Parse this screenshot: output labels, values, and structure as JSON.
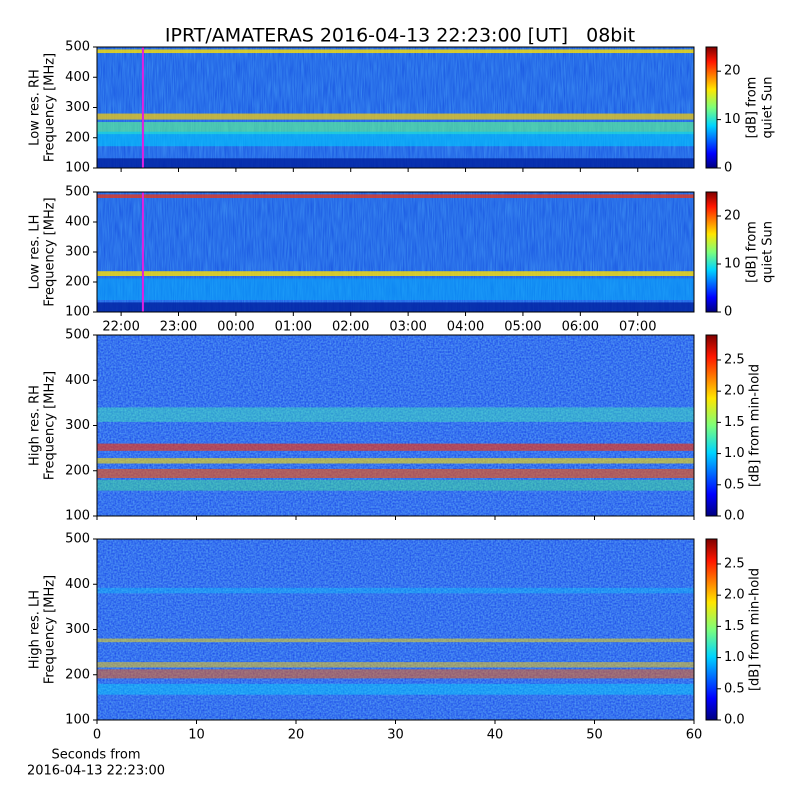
{
  "chart_data": [
    {
      "type": "heatmap",
      "title": "IPRT/AMATERAS 2016-04-13 22:23:00 [UT]   08bit",
      "ylabel": [
        "Low res. RH",
        "Frequency [MHz]"
      ],
      "ylim": [
        100,
        500
      ],
      "yticks": [
        100,
        200,
        300,
        400,
        500
      ],
      "xlim": [
        21.58,
        31.98
      ],
      "xticks_show_labels": false,
      "xticks": [
        {
          "value": 22,
          "label": "22:00"
        },
        {
          "value": 23,
          "label": "23:00"
        },
        {
          "value": 24,
          "label": "00:00"
        },
        {
          "value": 25,
          "label": "01:00"
        },
        {
          "value": 26,
          "label": "02:00"
        },
        {
          "value": 27,
          "label": "03:00"
        },
        {
          "value": 28,
          "label": "04:00"
        },
        {
          "value": 29,
          "label": "05:00"
        },
        {
          "value": 30,
          "label": "06:00"
        },
        {
          "value": 31,
          "label": "07:00"
        }
      ],
      "marker_x": 22.38,
      "marker_color": "#e020e0",
      "colorbar_label": [
        "[dB] from",
        "quiet Sun"
      ],
      "clim": [
        0,
        25
      ],
      "cticks": [
        0,
        10,
        20
      ]
    },
    {
      "type": "heatmap",
      "ylabel": [
        "Low res. LH",
        "Frequency [MHz]"
      ],
      "ylim": [
        100,
        500
      ],
      "yticks": [
        100,
        200,
        300,
        400,
        500
      ],
      "xlim": [
        21.58,
        31.98
      ],
      "xticks_show_labels": true,
      "xticks": [
        {
          "value": 22,
          "label": "22:00"
        },
        {
          "value": 23,
          "label": "23:00"
        },
        {
          "value": 24,
          "label": "00:00"
        },
        {
          "value": 25,
          "label": "01:00"
        },
        {
          "value": 26,
          "label": "02:00"
        },
        {
          "value": 27,
          "label": "03:00"
        },
        {
          "value": 28,
          "label": "04:00"
        },
        {
          "value": 29,
          "label": "05:00"
        },
        {
          "value": 30,
          "label": "06:00"
        },
        {
          "value": 31,
          "label": "07:00"
        }
      ],
      "marker_x": 22.38,
      "marker_color": "#e020e0",
      "colorbar_label": [
        "[dB] from",
        "quiet Sun"
      ],
      "clim": [
        0,
        25
      ],
      "cticks": [
        0,
        10,
        20
      ]
    },
    {
      "type": "heatmap",
      "ylabel": [
        "High res. RH",
        "Frequency [MHz]"
      ],
      "ylim": [
        100,
        500
      ],
      "yticks": [
        100,
        200,
        300,
        400,
        500
      ],
      "xlim": [
        0,
        60
      ],
      "xticks_show_labels": false,
      "xticks": [
        0,
        10,
        20,
        30,
        40,
        50,
        60
      ],
      "colorbar_label": [
        "[dB] from min-hold"
      ],
      "clim": [
        0,
        2.9
      ],
      "cticks": [
        {
          "value": 0,
          "label": "0.0"
        },
        0.5,
        {
          "value": 1,
          "label": "1.0"
        },
        1.5,
        {
          "value": 2,
          "label": "2.0"
        },
        2.5
      ]
    },
    {
      "type": "heatmap",
      "ylabel": [
        "High res. LH",
        "Frequency [MHz]"
      ],
      "ylim": [
        100,
        500
      ],
      "yticks": [
        100,
        200,
        300,
        400,
        500
      ],
      "xlim": [
        0,
        60
      ],
      "xticks_show_labels": true,
      "xticks": [
        0,
        10,
        20,
        30,
        40,
        50,
        60
      ],
      "xlabel": [
        "Seconds from",
        "2016-04-13 22:23:00"
      ],
      "colorbar_label": [
        "[dB] from min-hold"
      ],
      "clim": [
        0,
        2.9
      ],
      "cticks": [
        {
          "value": 0,
          "label": "0.0"
        },
        0.5,
        {
          "value": 1,
          "label": "1.0"
        },
        1.5,
        {
          "value": 2,
          "label": "2.0"
        },
        2.5
      ]
    }
  ]
}
